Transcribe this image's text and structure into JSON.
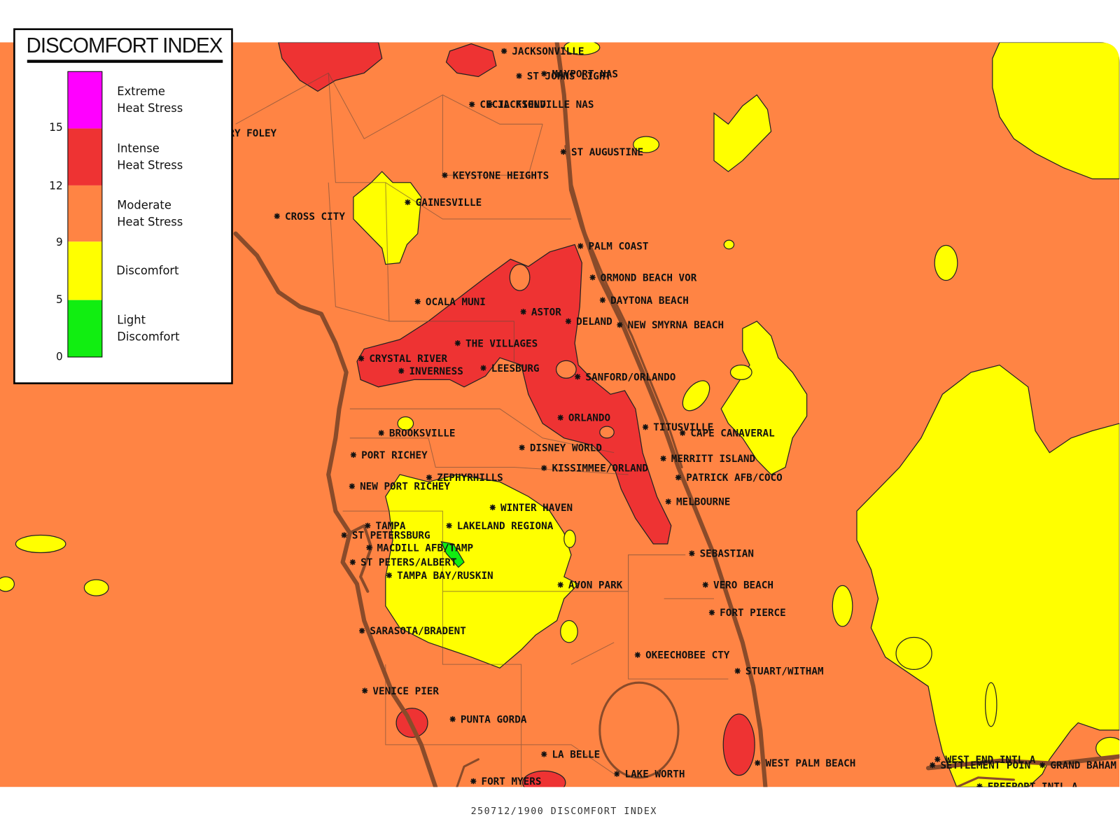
{
  "legend": {
    "title": "DISCOMFORT INDEX",
    "items": [
      {
        "lines": [
          "Extreme",
          "Heat Stress"
        ],
        "color": "#ff00ff"
      },
      {
        "lines": [
          "Intense",
          "Heat Stress"
        ],
        "color": "#ee3333"
      },
      {
        "lines": [
          "Moderate",
          "Heat Stress"
        ],
        "color": "#ff8444"
      },
      {
        "lines": [
          "Discomfort"
        ],
        "color": "#ffff00"
      },
      {
        "lines": [
          "Light",
          "Discomfort"
        ],
        "color": "#11ee11"
      }
    ],
    "thresholds": [
      15,
      12,
      9,
      5,
      0
    ]
  },
  "stations": [
    "JACKSONVILLE",
    "MAYPORT NAS",
    "ST JOHNS LIGHT",
    "CECIL FIELD",
    "JACKSONVILLE NAS",
    "RY FOLEY",
    "ST AUGUSTINE",
    "KEYSTONE HEIGHTS",
    "GAINESVILLE",
    "CROSS CITY",
    "PALM COAST",
    "ORMOND BEACH VOR",
    "DAYTONA BEACH",
    "OCALA MUNI",
    "ASTOR",
    "DELAND",
    "NEW SMYRNA BEACH",
    "THE VILLAGES",
    "CRYSTAL RIVER",
    "INVERNESS",
    "LEESBURG",
    "SANFORD/ORLANDO",
    "ORLANDO",
    "TITUSVILLE",
    "CAPE CANAVERAL",
    "BROOKSVILLE",
    "DISNEY WORLD",
    "PORT RICHEY",
    "KISSIMMEE/ORLAND",
    "MERRITT ISLAND",
    "PATRICK AFB/COCO",
    "ZEPHYRHILLS",
    "NEW PORT RICHEY",
    "MELBOURNE",
    "WINTER HAVEN",
    "TAMPA",
    "LAKELAND REGIONA",
    "ST PETERSBURG",
    "MACDILL AFB/TAMP",
    "ST PETERS/ALBERT",
    "TAMPA BAY/RUSKIN",
    "SEBASTIAN",
    "AVON PARK",
    "VERO BEACH",
    "FORT PIERCE",
    "SARASOTA/BRADENT",
    "OKEECHOBEE CTY",
    "STUART/WITHAM",
    "VENICE PIER",
    "PUNTA GORDA",
    "LA BELLE",
    "WEST PALM BEACH",
    "LAKE WORTH",
    "FORT MYERS",
    "WEST END INTL A",
    "SETTLEMENT POIN",
    "GRAND BAHAM",
    "FREEPORT INTL A"
  ],
  "caption": "250712/1900 DISCOMFORT INDEX"
}
